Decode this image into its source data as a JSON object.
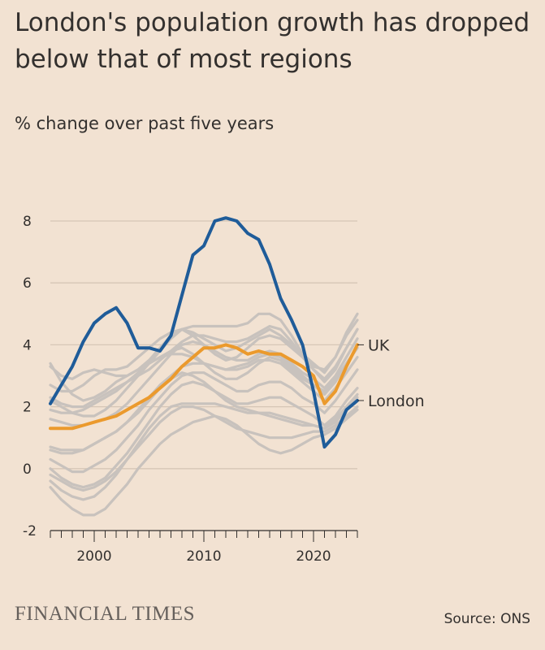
{
  "header": {
    "title": "London's population growth has dropped below that of most regions",
    "subtitle": "% change over past five years"
  },
  "footer": {
    "brand": "FINANCIAL TIMES",
    "source": "Source: ONS"
  },
  "colors": {
    "background": "#f2e2d2",
    "london": "#1f5c99",
    "uk": "#eb9a2d",
    "regions": "#c8c2bd",
    "grid": "#d6c6b6",
    "axis": "#33302e"
  },
  "chart_data": {
    "type": "line",
    "xlim": [
      1996,
      2024
    ],
    "ylim": [
      -2,
      8
    ],
    "y_ticks": [
      8,
      6,
      4,
      2,
      0,
      -2
    ],
    "x_ticks": [
      2000,
      2010,
      2020
    ],
    "grid": true,
    "x": [
      1996,
      1997,
      1998,
      1999,
      2000,
      2001,
      2002,
      2003,
      2004,
      2005,
      2006,
      2007,
      2008,
      2009,
      2010,
      2011,
      2012,
      2013,
      2014,
      2015,
      2016,
      2017,
      2018,
      2019,
      2020,
      2021,
      2022,
      2023,
      2024
    ],
    "series": [
      {
        "name": "London",
        "role": "highlight-london",
        "values": [
          2.1,
          2.7,
          3.3,
          4.1,
          4.7,
          5.0,
          5.2,
          4.7,
          3.9,
          3.9,
          3.8,
          4.3,
          5.6,
          6.9,
          7.2,
          8.0,
          8.1,
          8.0,
          7.6,
          7.4,
          6.6,
          5.5,
          4.8,
          4.0,
          2.5,
          0.7,
          1.1,
          1.9,
          2.2
        ]
      },
      {
        "name": "UK",
        "role": "highlight-uk",
        "values": [
          1.3,
          1.3,
          1.3,
          1.4,
          1.5,
          1.6,
          1.7,
          1.9,
          2.1,
          2.3,
          2.6,
          2.9,
          3.3,
          3.6,
          3.9,
          3.9,
          4.0,
          3.9,
          3.7,
          3.8,
          3.7,
          3.7,
          3.5,
          3.3,
          3.0,
          2.1,
          2.5,
          3.3,
          4.0
        ]
      },
      {
        "role": "region",
        "values": [
          2.2,
          2.0,
          1.8,
          1.7,
          1.7,
          1.9,
          2.2,
          2.6,
          3.0,
          3.4,
          3.8,
          4.2,
          4.5,
          4.4,
          4.2,
          4.0,
          3.8,
          3.9,
          4.1,
          4.3,
          4.5,
          4.3,
          4.0,
          3.7,
          3.4,
          3.1,
          3.6,
          4.4,
          5.0
        ]
      },
      {
        "role": "region",
        "values": [
          3.3,
          3.0,
          2.9,
          3.1,
          3.2,
          3.1,
          3.0,
          3.0,
          3.2,
          3.5,
          3.9,
          4.3,
          4.5,
          4.6,
          4.6,
          4.6,
          4.6,
          4.6,
          4.7,
          5.0,
          5.0,
          4.8,
          4.3,
          3.7,
          3.3,
          3.2,
          3.6,
          4.3,
          4.8
        ]
      },
      {
        "role": "region",
        "values": [
          2.7,
          2.5,
          2.5,
          2.7,
          3.0,
          3.2,
          3.2,
          3.3,
          3.6,
          3.9,
          4.2,
          4.4,
          4.5,
          4.3,
          4.0,
          3.7,
          3.5,
          3.6,
          3.9,
          4.2,
          4.3,
          4.2,
          3.9,
          3.6,
          3.2,
          2.9,
          3.3,
          3.9,
          4.5
        ]
      },
      {
        "role": "region",
        "values": [
          1.6,
          1.5,
          1.4,
          1.4,
          1.5,
          1.6,
          1.8,
          2.1,
          2.5,
          2.9,
          3.3,
          3.7,
          4.0,
          4.1,
          4.0,
          3.8,
          3.6,
          3.5,
          3.5,
          3.7,
          3.8,
          3.7,
          3.4,
          3.1,
          2.9,
          2.6,
          3.0,
          3.6,
          4.2
        ]
      },
      {
        "role": "region",
        "values": [
          1.9,
          1.8,
          1.8,
          1.9,
          2.1,
          2.3,
          2.5,
          2.8,
          3.1,
          3.4,
          3.6,
          3.8,
          3.9,
          3.7,
          3.4,
          3.1,
          2.9,
          2.9,
          3.1,
          3.4,
          3.6,
          3.5,
          3.2,
          2.9,
          2.7,
          2.4,
          2.8,
          3.4,
          3.9
        ]
      },
      {
        "role": "region",
        "values": [
          0.6,
          0.5,
          0.5,
          0.6,
          0.8,
          1.0,
          1.2,
          1.5,
          1.9,
          2.3,
          2.7,
          3.0,
          3.3,
          3.4,
          3.4,
          3.3,
          3.2,
          3.2,
          3.3,
          3.5,
          3.5,
          3.4,
          3.1,
          2.8,
          2.5,
          2.2,
          2.6,
          3.1,
          3.6
        ]
      },
      {
        "role": "region",
        "values": [
          0.3,
          0.1,
          -0.1,
          -0.1,
          0.1,
          0.3,
          0.6,
          1.0,
          1.4,
          1.9,
          2.3,
          2.7,
          3.0,
          3.1,
          3.1,
          2.9,
          2.7,
          2.5,
          2.5,
          2.7,
          2.8,
          2.8,
          2.6,
          2.3,
          2.1,
          1.8,
          2.2,
          2.7,
          3.2
        ]
      },
      {
        "role": "region",
        "values": [
          0.0,
          -0.3,
          -0.5,
          -0.6,
          -0.5,
          -0.3,
          0.1,
          0.5,
          1.0,
          1.5,
          2.0,
          2.4,
          2.7,
          2.8,
          2.7,
          2.5,
          2.3,
          2.1,
          2.1,
          2.2,
          2.3,
          2.3,
          2.1,
          1.9,
          1.7,
          1.4,
          1.7,
          2.2,
          2.6
        ]
      },
      {
        "role": "region",
        "values": [
          -0.4,
          -0.7,
          -0.9,
          -1.0,
          -0.9,
          -0.6,
          -0.2,
          0.3,
          0.8,
          1.3,
          1.7,
          2.0,
          2.1,
          2.1,
          2.1,
          2.1,
          2.0,
          1.9,
          1.8,
          1.8,
          1.8,
          1.7,
          1.6,
          1.5,
          1.4,
          1.3,
          1.5,
          1.9,
          2.3
        ]
      },
      {
        "role": "region",
        "values": [
          -0.6,
          -1.0,
          -1.3,
          -1.5,
          -1.5,
          -1.3,
          -0.9,
          -0.5,
          0.0,
          0.4,
          0.8,
          1.1,
          1.3,
          1.5,
          1.6,
          1.7,
          1.6,
          1.4,
          1.1,
          0.8,
          0.6,
          0.5,
          0.6,
          0.8,
          1.0,
          1.1,
          1.3,
          1.6,
          1.9
        ]
      },
      {
        "role": "region",
        "values": [
          0.7,
          0.6,
          0.6,
          0.6,
          0.8,
          1.0,
          1.2,
          1.5,
          1.8,
          2.2,
          2.6,
          2.9,
          3.1,
          3.0,
          2.8,
          2.5,
          2.2,
          2.0,
          1.9,
          1.8,
          1.7,
          1.6,
          1.5,
          1.4,
          1.4,
          1.3,
          1.6,
          2.0,
          2.4
        ]
      },
      {
        "role": "region",
        "values": [
          -0.2,
          -0.4,
          -0.6,
          -0.7,
          -0.6,
          -0.4,
          -0.1,
          0.3,
          0.7,
          1.1,
          1.5,
          1.8,
          2.0,
          2.0,
          1.9,
          1.7,
          1.5,
          1.3,
          1.2,
          1.1,
          1.0,
          1.0,
          1.0,
          1.1,
          1.2,
          1.2,
          1.4,
          1.7,
          2.0
        ]
      },
      {
        "role": "region",
        "values": [
          3.4,
          2.8,
          2.4,
          2.2,
          2.3,
          2.5,
          2.8,
          3.0,
          3.2,
          3.4,
          3.6,
          3.7,
          3.7,
          3.6,
          3.4,
          3.3,
          3.2,
          3.3,
          3.4,
          3.6,
          3.7,
          3.6,
          3.3,
          3.0,
          2.7,
          2.5,
          2.9,
          3.4,
          3.9
        ]
      },
      {
        "role": "region",
        "values": [
          2.3,
          2.1,
          2.0,
          2.0,
          2.2,
          2.4,
          2.6,
          2.8,
          3.0,
          3.2,
          3.5,
          3.8,
          4.1,
          4.3,
          4.3,
          4.2,
          4.1,
          4.1,
          4.2,
          4.4,
          4.6,
          4.5,
          4.1,
          3.6,
          3.2,
          2.8,
          3.2,
          3.9,
          4.5
        ]
      }
    ]
  }
}
